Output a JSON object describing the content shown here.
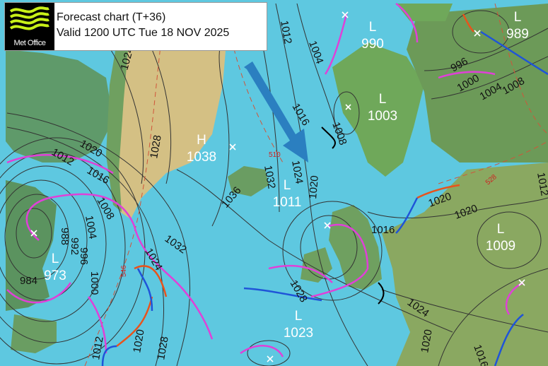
{
  "header": {
    "logo_text": "Met Office",
    "title": "Forecast chart (T+36)",
    "valid": "Valid 1200 UTC Tue 18 NOV 2025"
  },
  "colors": {
    "sea": "#5ec8e0",
    "ice": "#d4c084",
    "land": "#5f9a6a",
    "warm_front": "#e8531c",
    "cold_front": "#1f54d8",
    "occluded_front": "#e040d8",
    "isobar": "#333333",
    "thickness": "#d0553a",
    "arrow": "#2b7fc0"
  },
  "pressure_centres": [
    {
      "type": "H",
      "value": "1038"
    },
    {
      "type": "L",
      "value": "973"
    },
    {
      "type": "L",
      "value": "1011"
    },
    {
      "type": "L",
      "value": "1023"
    },
    {
      "type": "L",
      "value": "990"
    },
    {
      "type": "L",
      "value": "1003"
    },
    {
      "type": "L",
      "value": "989"
    },
    {
      "type": "L",
      "value": "1009"
    }
  ],
  "isobar_labels": [
    "1024",
    "1028",
    "1020",
    "1012",
    "1016",
    "1008",
    "1004",
    "1036",
    "1032",
    "1024",
    "1000",
    "996",
    "992",
    "988",
    "984",
    "1020",
    "1012",
    "1020",
    "1028",
    "1012",
    "1004",
    "1016",
    "1008",
    "1032",
    "1024",
    "1020",
    "1016",
    "1028",
    "1024",
    "1020",
    "1016",
    "996",
    "1000",
    "1004",
    "1008",
    "1020",
    "1012"
  ],
  "thickness_labels": [
    "546",
    "510",
    "528"
  ]
}
